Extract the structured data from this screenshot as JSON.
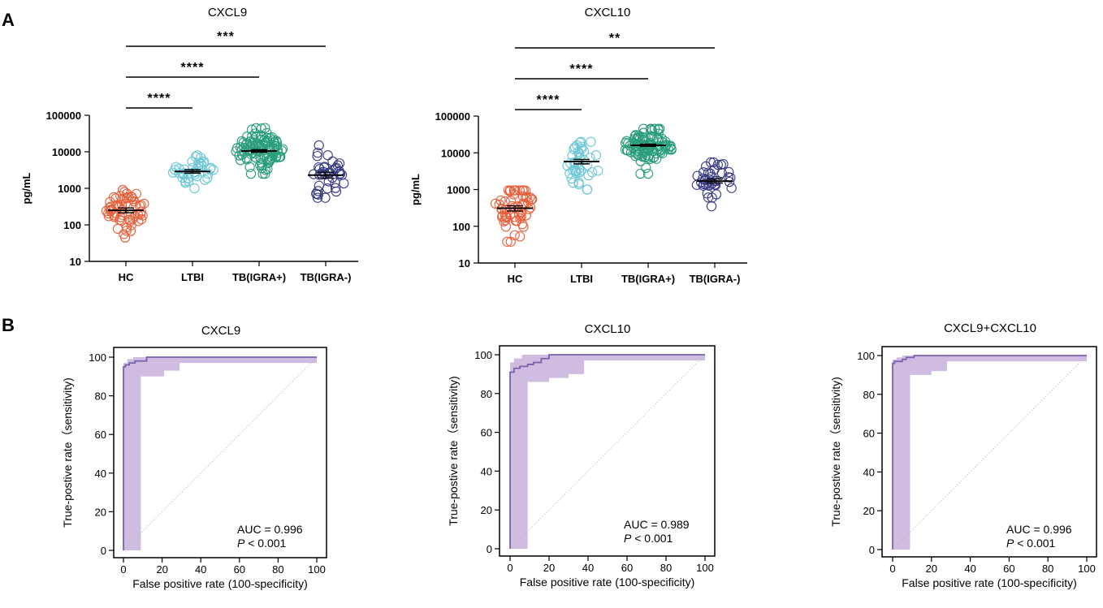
{
  "panels": {
    "a": "A",
    "b": "B"
  },
  "chart_data": [
    {
      "type": "scatter",
      "title": "CXCL9",
      "ylabel": "pg/mL",
      "yscale": "log",
      "ylim": [
        10,
        100000
      ],
      "yticks": [
        "10",
        "100",
        "1000",
        "10000",
        "100000"
      ],
      "categories": [
        "HC",
        "LTBI",
        "TB(IGRA+)",
        "TB(IGRA-)"
      ],
      "groups": [
        {
          "name": "HC",
          "color": "#e8603c",
          "median": 250,
          "sem_low": 215,
          "sem_high": 290,
          "n": 60,
          "min": 45,
          "max": 900
        },
        {
          "name": "LTBI",
          "color": "#6cc6d6",
          "median": 2900,
          "sem_low": 2600,
          "sem_high": 3250,
          "n": 40,
          "min": 1000,
          "max": 8000
        },
        {
          "name": "TB(IGRA+)",
          "color": "#2a9d7c",
          "median": 10500,
          "sem_low": 9700,
          "sem_high": 11400,
          "n": 100,
          "min": 2500,
          "max": 45000
        },
        {
          "name": "TB(IGRA-)",
          "color": "#3a3d86",
          "median": 2300,
          "sem_low": 1900,
          "sem_high": 2750,
          "n": 40,
          "min": 550,
          "max": 15000
        }
      ],
      "significance": [
        {
          "from": "HC",
          "to": "LTBI",
          "label": "****"
        },
        {
          "from": "HC",
          "to": "TB(IGRA+)",
          "label": "****"
        },
        {
          "from": "HC",
          "to": "TB(IGRA-)",
          "label": "***"
        }
      ]
    },
    {
      "type": "scatter",
      "title": "CXCL10",
      "ylabel": "pg/mL",
      "yscale": "log",
      "ylim": [
        10,
        100000
      ],
      "yticks": [
        "10",
        "100",
        "1000",
        "10000",
        "100000"
      ],
      "categories": [
        "HC",
        "LTBI",
        "TB(IGRA+)",
        "TB(IGRA-)"
      ],
      "groups": [
        {
          "name": "HC",
          "color": "#e8603c",
          "median": 310,
          "sem_low": 260,
          "sem_high": 360,
          "n": 60,
          "min": 38,
          "max": 950
        },
        {
          "name": "LTBI",
          "color": "#6cc6d6",
          "median": 5800,
          "sem_low": 5000,
          "sem_high": 6600,
          "n": 40,
          "min": 1000,
          "max": 20000
        },
        {
          "name": "TB(IGRA+)",
          "color": "#2a9d7c",
          "median": 16000,
          "sem_low": 15000,
          "sem_high": 17200,
          "n": 100,
          "min": 2700,
          "max": 45000
        },
        {
          "name": "TB(IGRA-)",
          "color": "#3a3d86",
          "median": 1700,
          "sem_low": 1500,
          "sem_high": 1950,
          "n": 40,
          "min": 350,
          "max": 5500
        }
      ],
      "significance": [
        {
          "from": "HC",
          "to": "LTBI",
          "label": "****"
        },
        {
          "from": "HC",
          "to": "TB(IGRA+)",
          "label": "****"
        },
        {
          "from": "HC",
          "to": "TB(IGRA-)",
          "label": "**"
        }
      ]
    },
    {
      "type": "line",
      "title": "CXCL9",
      "xlabel": "False positive rate (100-specificity)",
      "ylabel": "True-postive rate（sensitivity)",
      "xlim": [
        0,
        100
      ],
      "ylim": [
        0,
        100
      ],
      "xticks": [
        "0",
        "20",
        "40",
        "60",
        "80",
        "100"
      ],
      "yticks": [
        "0",
        "20",
        "40",
        "60",
        "80",
        "100"
      ],
      "roc": {
        "x": [
          0,
          0,
          1,
          1,
          3,
          3,
          6,
          6,
          12,
          12,
          100
        ],
        "y": [
          0,
          95,
          95,
          96,
          96,
          97,
          97,
          98,
          98,
          100,
          100
        ]
      },
      "ci_upper": {
        "x": [
          0,
          0,
          2,
          2,
          5,
          5,
          100
        ],
        "y": [
          0,
          97,
          97,
          99,
          99,
          100,
          100
        ]
      },
      "ci_lower": {
        "x": [
          0,
          9,
          9,
          21,
          21,
          29,
          29,
          100
        ],
        "y": [
          0,
          0,
          90,
          90,
          93,
          93,
          97,
          97
        ]
      },
      "auc_text": "AUC = 0.996",
      "p_label": "P",
      "p_text": " < 0.001"
    },
    {
      "type": "line",
      "title": "CXCL10",
      "xlabel": "False positive rate (100-specificity)",
      "ylabel": "True-postive rate（sensitivity)",
      "xlim": [
        0,
        100
      ],
      "ylim": [
        0,
        100
      ],
      "xticks": [
        "0",
        "20",
        "40",
        "60",
        "80",
        "100"
      ],
      "yticks": [
        "0",
        "20",
        "40",
        "60",
        "80",
        "100"
      ],
      "roc": {
        "x": [
          0,
          0,
          2,
          2,
          5,
          5,
          9,
          9,
          12,
          12,
          16,
          16,
          20,
          20,
          100
        ],
        "y": [
          0,
          91,
          91,
          93,
          93,
          94,
          94,
          95,
          95,
          96,
          96,
          98,
          98,
          100,
          100
        ]
      },
      "ci_upper": {
        "x": [
          0,
          0,
          2,
          2,
          6,
          6,
          100
        ],
        "y": [
          0,
          96,
          96,
          98,
          98,
          100,
          100
        ]
      },
      "ci_lower": {
        "x": [
          0,
          9,
          9,
          20,
          20,
          30,
          30,
          38,
          38,
          100
        ],
        "y": [
          0,
          0,
          86,
          86,
          88,
          88,
          90,
          90,
          97,
          97
        ]
      },
      "auc_text": "AUC = 0.989",
      "p_label": "P",
      "p_text": " < 0.001"
    },
    {
      "type": "line",
      "title": "CXCL9+CXCL10",
      "xlabel": "False positive rate (100-specificity)",
      "ylabel": "True-postive rate（sensitivity)",
      "xlim": [
        0,
        100
      ],
      "ylim": [
        0,
        100
      ],
      "xticks": [
        "0",
        "20",
        "40",
        "60",
        "80",
        "100"
      ],
      "yticks": [
        "0",
        "20",
        "40",
        "60",
        "80",
        "100"
      ],
      "roc": {
        "x": [
          0,
          0,
          1,
          1,
          5,
          5,
          7,
          7,
          11,
          11,
          100
        ],
        "y": [
          0,
          96,
          96,
          97,
          97,
          98,
          98,
          99,
          99,
          100,
          100
        ]
      },
      "ci_upper": {
        "x": [
          0,
          0,
          2,
          2,
          5,
          5,
          100
        ],
        "y": [
          0,
          98,
          98,
          99,
          99,
          100,
          100
        ]
      },
      "ci_lower": {
        "x": [
          0,
          9,
          9,
          20,
          20,
          28,
          28,
          100
        ],
        "y": [
          0,
          0,
          90,
          90,
          92,
          92,
          97,
          97
        ]
      },
      "auc_text": "AUC = 0.996",
      "p_label": "P",
      "p_text": " < 0.001"
    }
  ],
  "colors": {
    "roc_line": "#7b62ad",
    "roc_fill": "#c6b2dc",
    "diagonal": "#b8b8b8"
  }
}
